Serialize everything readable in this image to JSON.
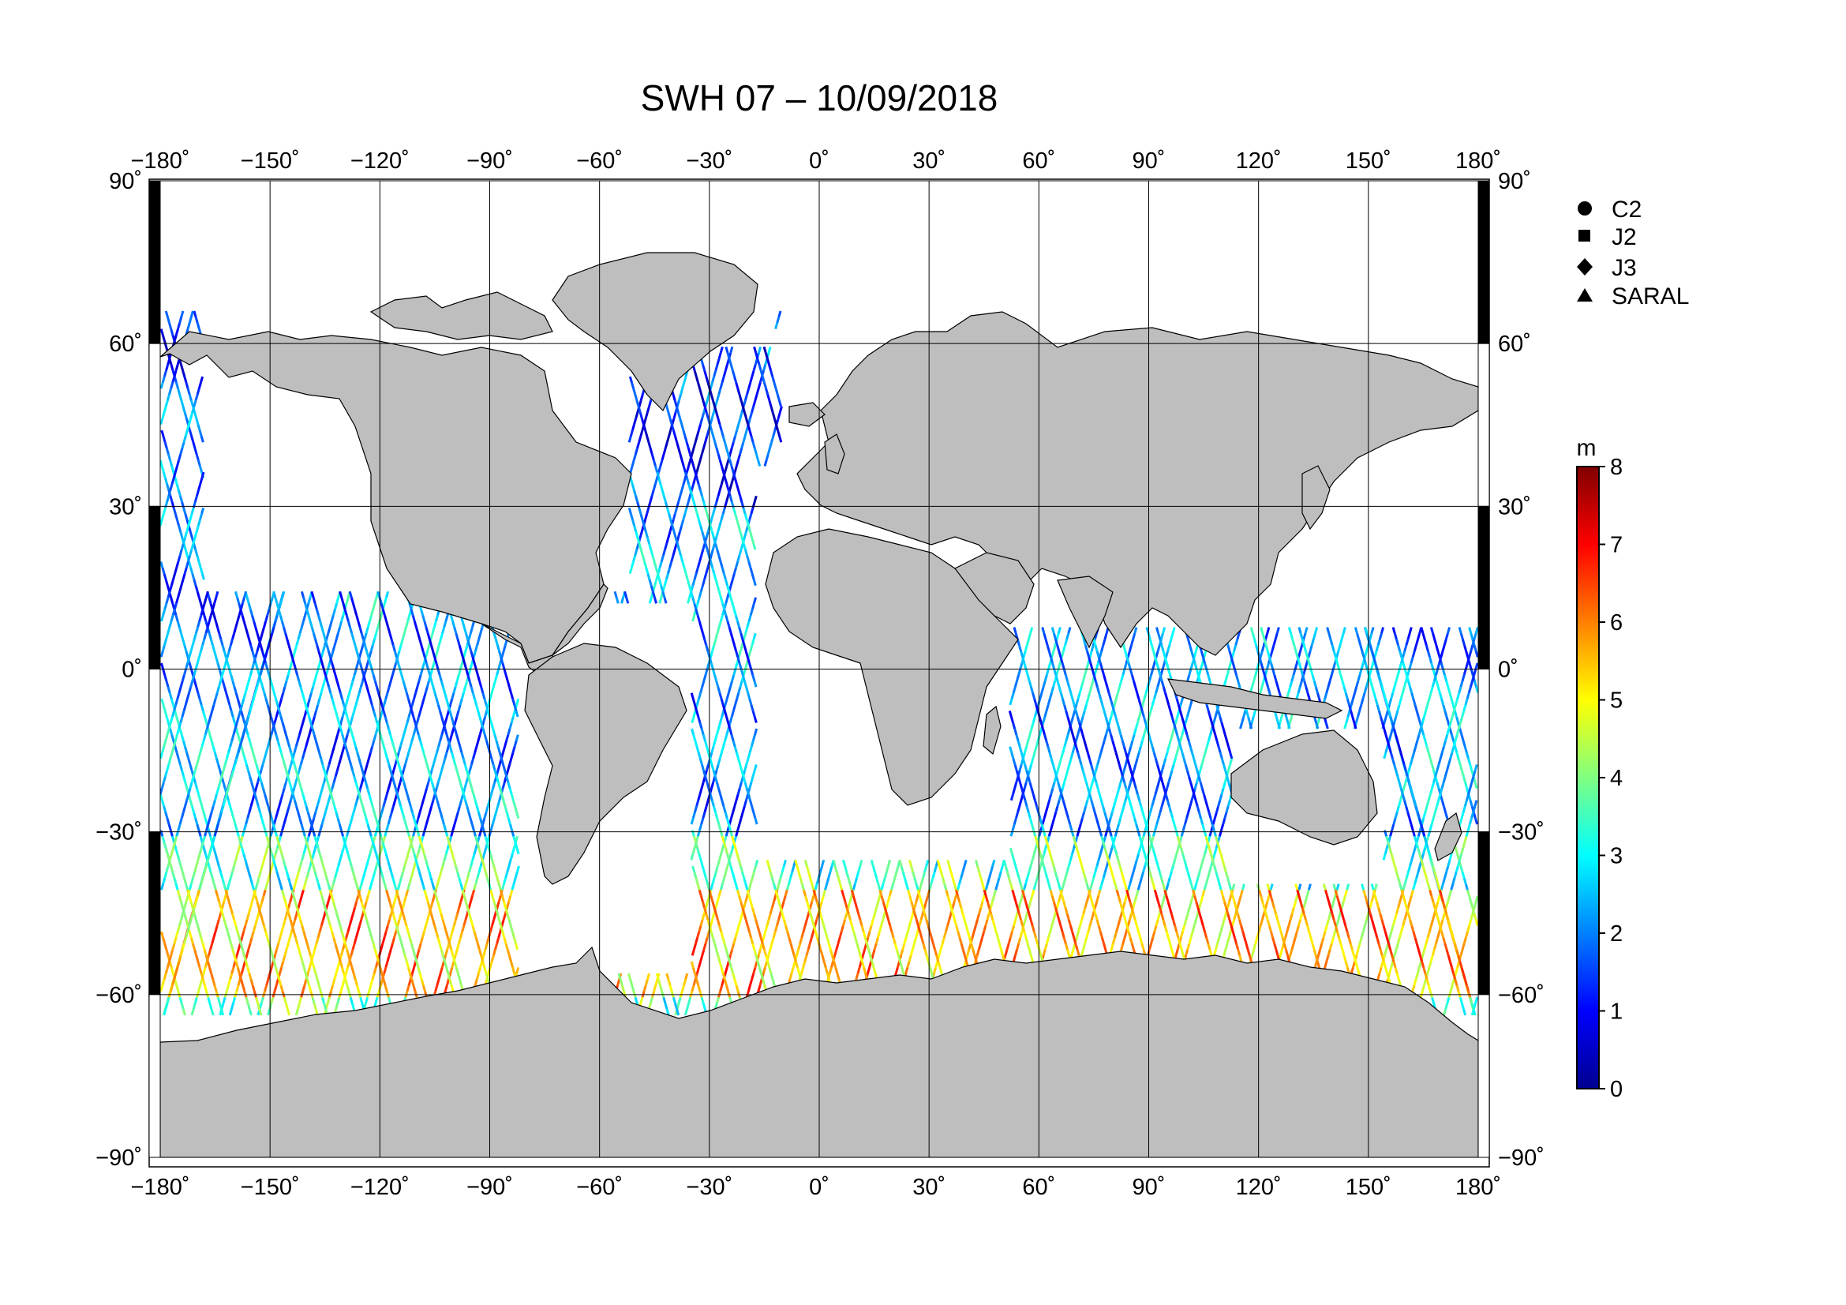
{
  "title": "SWH 07 – 10/09/2018",
  "map": {
    "projection": "equirectangular",
    "lon_range": [
      -180,
      180
    ],
    "lat_range": [
      -90,
      90
    ],
    "lon_ticks": [
      "−180˚",
      "−150˚",
      "−120˚",
      "−90˚",
      "−60˚",
      "−30˚",
      "0˚",
      "30˚",
      "60˚",
      "90˚",
      "120˚",
      "150˚",
      "180˚"
    ],
    "lat_ticks_left": [
      "90˚",
      "60˚",
      "30˚",
      "0˚",
      "−30˚",
      "−60˚",
      "−90˚"
    ],
    "lat_ticks_right": [
      "90˚",
      "60˚",
      "30˚",
      "0˚",
      "−30˚",
      "−60˚",
      "−90˚"
    ],
    "land_color": "#bebebe",
    "grid": true
  },
  "legend": {
    "items": [
      {
        "label": "C2",
        "marker": "circle-icon"
      },
      {
        "label": "J2",
        "marker": "square-icon"
      },
      {
        "label": "J3",
        "marker": "diamond-icon"
      },
      {
        "label": "SARAL",
        "marker": "triangle-icon"
      }
    ]
  },
  "colorbar": {
    "unit": "m",
    "min": 0,
    "max": 8,
    "tick_labels": [
      "0",
      "1",
      "2",
      "3",
      "4",
      "5",
      "6",
      "7",
      "8"
    ],
    "colormap": [
      "#00008f",
      "#0000ff",
      "#0080ff",
      "#00ffff",
      "#80ff80",
      "#ffff00",
      "#ff8000",
      "#ff0000",
      "#800000"
    ]
  },
  "chart_data": {
    "type": "scatter",
    "variable": "significant wave height (m)",
    "title": "SWH 07 – 10/09/2018",
    "xlim": [
      -180,
      180
    ],
    "ylim": [
      -90,
      90
    ],
    "grid": true,
    "colorbar_range": [
      0,
      8
    ],
    "ground_tracks": "satellite altimeter ascending/descending passes between about 66N and 66S, ocean only",
    "swh_zones_m": [
      {
        "lat_range": [
          30,
          66
        ],
        "swh": 1.5
      },
      {
        "lat_range": [
          -30,
          30
        ],
        "swh": 2.2
      },
      {
        "lat_range": [
          -40,
          -30
        ],
        "swh": 3.5
      },
      {
        "lat_range": [
          -60,
          -40
        ],
        "swh": 5.5
      },
      {
        "lat_range": [
          -66,
          -60
        ],
        "swh": 3.8
      }
    ],
    "swh_max_m": 8,
    "swh_min_m": 0
  }
}
